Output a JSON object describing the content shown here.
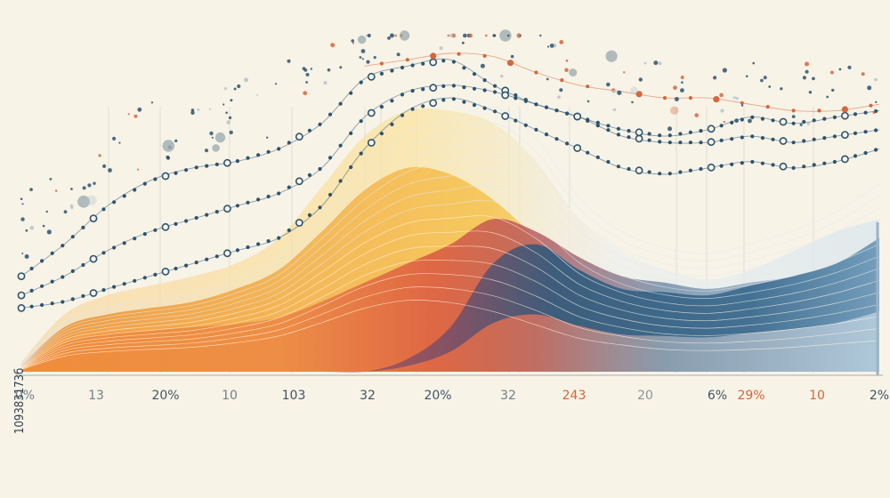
{
  "chart_data": {
    "type": "area",
    "title": "",
    "xlabel": "",
    "ylabel": "",
    "grid": false,
    "legend": "none",
    "ylim": [
      0,
      100
    ],
    "tick_labels": [
      {
        "text": "0%",
        "color": "#6f7f8c"
      },
      {
        "text": "13",
        "color": "#6f7f8c"
      },
      {
        "text": "20%",
        "color": "#3e5566"
      },
      {
        "text": "10",
        "color": "#6f7f8c"
      },
      {
        "text": "103",
        "color": "#3e5566"
      },
      {
        "text": "32",
        "color": "#3e5566"
      },
      {
        "text": "20%",
        "color": "#3e5566"
      },
      {
        "text": "32",
        "color": "#6f7f8c"
      },
      {
        "text": "243",
        "color": "#d3653a"
      },
      {
        "text": "20",
        "color": "#8a96a0"
      },
      {
        "text": "6%",
        "color": "#3e5566"
      },
      {
        "text": "29%",
        "color": "#d3653a"
      },
      {
        "text": "10",
        "color": "#d3653a"
      },
      {
        "text": "2%",
        "color": "#3e5566"
      }
    ],
    "x": [
      0,
      5,
      10,
      15,
      20,
      25,
      30,
      35,
      40,
      45,
      50,
      55,
      60,
      65,
      70,
      75,
      80,
      85,
      90,
      95,
      100
    ],
    "series": [
      {
        "key": "wave_back",
        "color": "#fbe3a6",
        "values": [
          3,
          18,
          24,
          27,
          30,
          34,
          42,
          58,
          74,
          82,
          82,
          78,
          66,
          48,
          38,
          32,
          29,
          32,
          38,
          44,
          48
        ]
      },
      {
        "key": "wave_warm",
        "color": "#f0a43a",
        "values": [
          2,
          14,
          18,
          20,
          22,
          26,
          32,
          44,
          57,
          64,
          62,
          54,
          42,
          30,
          24,
          20,
          19,
          20,
          22,
          25,
          28
        ]
      },
      {
        "key": "wave_red",
        "color": "#d9503e",
        "values": [
          1,
          9,
          12,
          13,
          14,
          15,
          17,
          22,
          28,
          34,
          40,
          48,
          44,
          36,
          30,
          28,
          26,
          28,
          30,
          34,
          40
        ]
      },
      {
        "key": "wave_blue",
        "color": "#2f5a7d",
        "values": [
          0,
          0,
          0,
          0,
          0,
          0,
          0,
          0,
          0,
          4,
          14,
          34,
          40,
          32,
          26,
          25,
          24,
          27,
          30,
          34,
          42
        ]
      }
    ],
    "dot_lines": [
      {
        "color": "#2c5470",
        "values": [
          30,
          40,
          52,
          60,
          64,
          66,
          70,
          78,
          92,
          96,
          98,
          90,
          84,
          80,
          74,
          72,
          72,
          74,
          72,
          74,
          76
        ]
      },
      {
        "color": "#2c5470",
        "values": [
          24,
          30,
          38,
          44,
          48,
          52,
          56,
          64,
          80,
          88,
          90,
          88,
          84,
          80,
          76,
          74,
          76,
          80,
          78,
          80,
          82
        ]
      },
      {
        "color": "#2c5470",
        "values": [
          20,
          22,
          26,
          30,
          34,
          38,
          42,
          52,
          70,
          82,
          86,
          82,
          76,
          70,
          64,
          62,
          64,
          66,
          64,
          66,
          70
        ]
      },
      {
        "color": "#d5673d",
        "values": [
          null,
          null,
          null,
          null,
          null,
          null,
          null,
          null,
          96,
          98,
          100,
          99,
          94,
          90,
          88,
          86,
          86,
          84,
          82,
          82,
          84
        ]
      }
    ],
    "colors": {
      "background": "#f8f3e7",
      "axis": "#9aa3aa",
      "navy": "#2c5470",
      "orange": "#d5673d"
    },
    "side_id": "109383173б"
  }
}
